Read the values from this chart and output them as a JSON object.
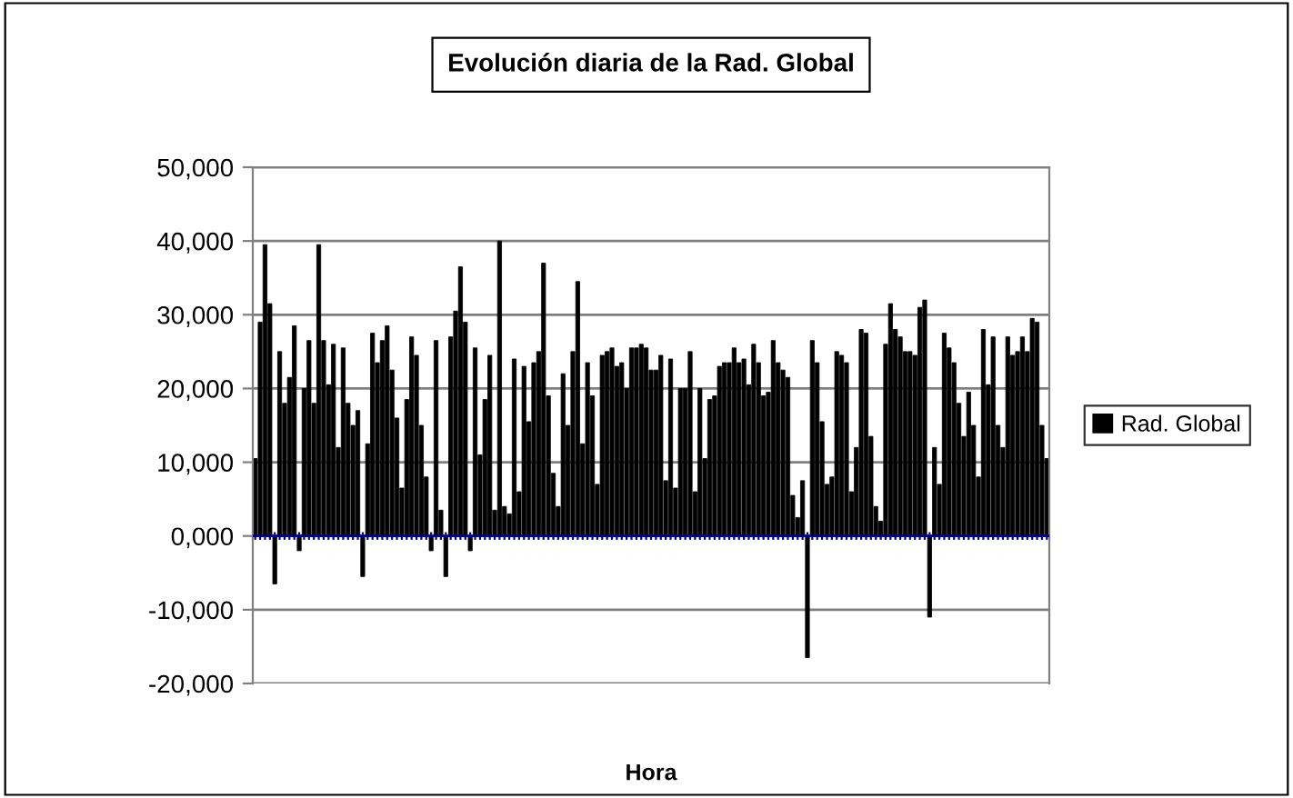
{
  "chart_data": {
    "type": "bar",
    "title": "Evolución diaria de la Rad. Global",
    "xlabel": "Hora",
    "categories": [
      null,
      null,
      null,
      null,
      null,
      null,
      null,
      null,
      null,
      null,
      null,
      null,
      null,
      null,
      null,
      null,
      null,
      null,
      null,
      null,
      null,
      null,
      null,
      null,
      null,
      null,
      null,
      null,
      null,
      null,
      null,
      null,
      null,
      null,
      null,
      null,
      null,
      null,
      null,
      null,
      null,
      null,
      null,
      null,
      null,
      null,
      null,
      null,
      null,
      null,
      null,
      null,
      null,
      null,
      null,
      null,
      null,
      null,
      null,
      null,
      null,
      null,
      null,
      null,
      null,
      null,
      null,
      null,
      null,
      null,
      null,
      null,
      null,
      null,
      null,
      null,
      null,
      null,
      null,
      null,
      null,
      null,
      null,
      null,
      null,
      null,
      null,
      null,
      null,
      null,
      null,
      null,
      null,
      null,
      null,
      null,
      null,
      null,
      null,
      null,
      null,
      null,
      null,
      null,
      null,
      null,
      null,
      null,
      null,
      null,
      null,
      null,
      null,
      null,
      null,
      null,
      null,
      null,
      null,
      null,
      null,
      null,
      null,
      null,
      null,
      null,
      null,
      null,
      null,
      null,
      null,
      null,
      null,
      null,
      null,
      null,
      null,
      null,
      null,
      null,
      null,
      null,
      null,
      null,
      null,
      null,
      null,
      null,
      null,
      null,
      null,
      null,
      null,
      null,
      null,
      null,
      null,
      null,
      null,
      null,
      null,
      null,
      null
    ],
    "series": [
      {
        "name": "Rad. Global",
        "color": "#000000",
        "values": [
          10500,
          29000,
          39500,
          31500,
          -6500,
          25000,
          18000,
          21500,
          28500,
          -2000,
          20000,
          26500,
          18000,
          39500,
          26500,
          20500,
          26000,
          12000,
          25500,
          18000,
          15000,
          17000,
          -5500,
          12500,
          27500,
          23500,
          26500,
          28500,
          22500,
          16000,
          6500,
          18500,
          27000,
          24500,
          15000,
          8000,
          -2000,
          26500,
          3500,
          -5500,
          27000,
          30500,
          36500,
          29000,
          -2000,
          25500,
          11000,
          18500,
          24500,
          3500,
          40000,
          4000,
          3000,
          24000,
          6000,
          23000,
          15500,
          23500,
          25000,
          37000,
          19000,
          8500,
          4000,
          22000,
          15000,
          25000,
          34500,
          12500,
          23500,
          19000,
          7000,
          24500,
          25000,
          25500,
          23000,
          23500,
          20000,
          25500,
          25500,
          26000,
          25500,
          22500,
          22500,
          24500,
          7500,
          24000,
          6500,
          20000,
          20000,
          25000,
          6000,
          20000,
          10500,
          18500,
          19000,
          23000,
          23500,
          23500,
          25500,
          23500,
          24000,
          20500,
          26000,
          23500,
          19000,
          19500,
          26500,
          23500,
          22500,
          21500,
          5500,
          2500,
          7500,
          -16500,
          26500,
          23500,
          15500,
          7000,
          8000,
          25000,
          24500,
          23500,
          6000,
          12000,
          28000,
          27500,
          13500,
          4000,
          2000,
          26000,
          31500,
          28000,
          27000,
          25000,
          25000,
          24500,
          31000,
          32000,
          -11000,
          12000,
          7000,
          27500,
          25500,
          23500,
          18000,
          13500,
          19500,
          15000,
          8000,
          28000,
          20500,
          27000,
          15000,
          12000,
          27000,
          24500,
          25000,
          27000,
          25000,
          29500,
          29000,
          15000,
          10500
        ]
      }
    ],
    "ylim": [
      -20000,
      50000
    ],
    "yticks": [
      {
        "value": -20000,
        "label": "-20,000"
      },
      {
        "value": -10000,
        "label": "-10,000"
      },
      {
        "value": 0,
        "label": "0,000"
      },
      {
        "value": 10000,
        "label": "10,000"
      },
      {
        "value": 20000,
        "label": "20,000"
      },
      {
        "value": 30000,
        "label": "30,000"
      },
      {
        "value": 40000,
        "label": "40,000"
      },
      {
        "value": 50000,
        "label": "50,000"
      }
    ],
    "ref_lines": [
      {
        "axis": "y",
        "value": 0,
        "color": "#000080"
      }
    ],
    "grid": "y",
    "legend": "right"
  }
}
